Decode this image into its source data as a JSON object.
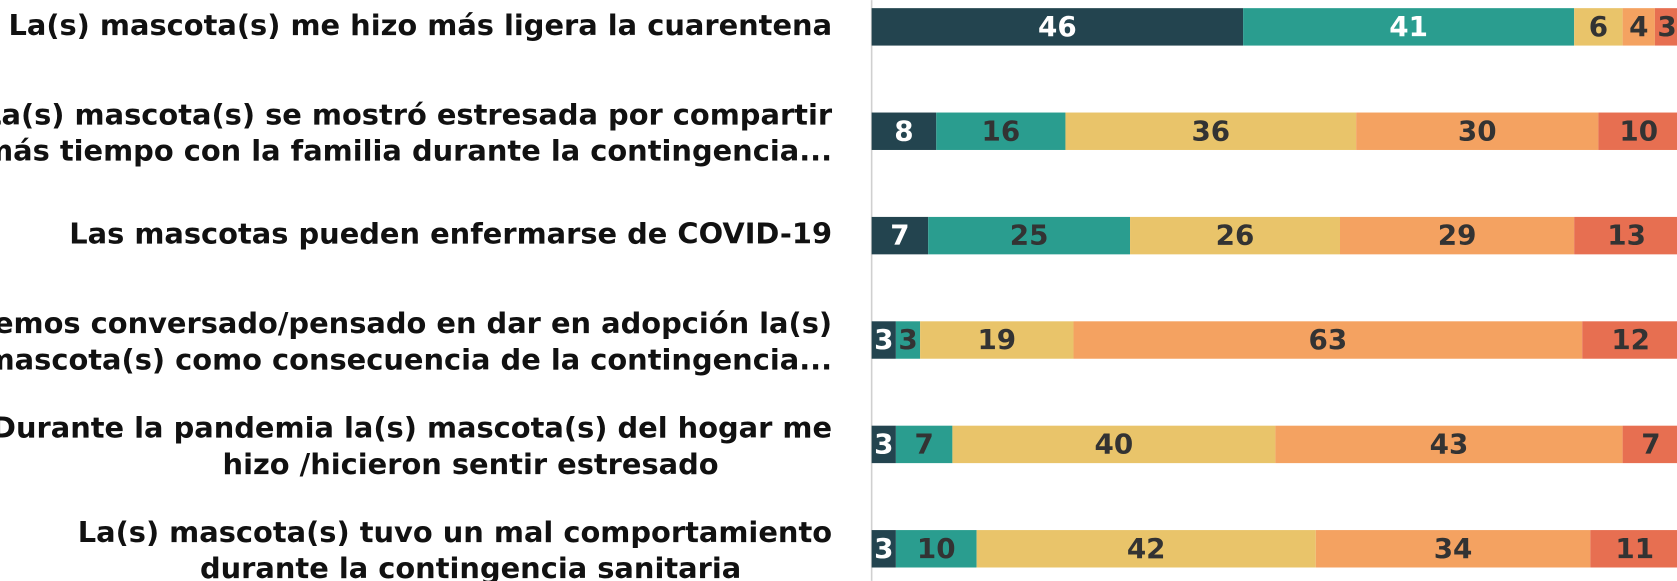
{
  "chart_data": {
    "type": "stacked-bar-horizontal",
    "categories": [
      [
        "La(s) mascota(s) me hizo más ligera la cuarentena"
      ],
      [
        "La(s) mascota(s) se mostró estresada por compartir",
        "más tiempo con la familia durante la contingencia..."
      ],
      [
        "Las mascotas pueden enfermarse de COVID-19"
      ],
      [
        "Hemos conversado/pensado en dar en adopción la(s)",
        "mascota(s) como consecuencia de la contingencia..."
      ],
      [
        "Durante la pandemia la(s) mascota(s) del hogar me",
        "hizo /hicieron sentir estresado"
      ],
      [
        "La(s) mascota(s) tuvo un mal comportamiento",
        "durante la contingencia sanitaria"
      ]
    ],
    "series": [
      {
        "color": "#23444f",
        "values": [
          46,
          8,
          7,
          3,
          3,
          3
        ]
      },
      {
        "color": "#2a9d8f",
        "values": [
          41,
          16,
          25,
          3,
          7,
          10
        ]
      },
      {
        "color": "#e9c46a",
        "values": [
          6,
          36,
          26,
          19,
          40,
          42
        ]
      },
      {
        "color": "#f4a261",
        "values": [
          4,
          30,
          29,
          63,
          43,
          34
        ]
      },
      {
        "color": "#e76f51",
        "values": [
          3,
          10,
          13,
          12,
          7,
          11
        ]
      }
    ],
    "xlim": [
      0,
      100
    ]
  }
}
